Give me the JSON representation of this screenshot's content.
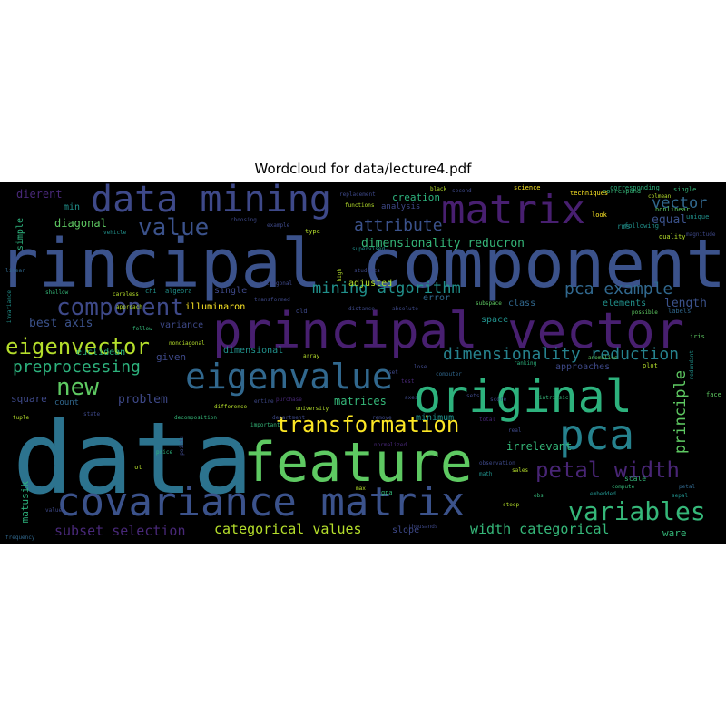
{
  "figure": {
    "title": "Wordcloud for data/lecture4.pdf"
  },
  "colors": {
    "background": "#000000",
    "title": "#000000"
  },
  "words": [
    {
      "text": "data",
      "color": "#2c738e"
    },
    {
      "text": "principal component",
      "color": "#3b528b"
    },
    {
      "text": "principal vector",
      "color": "#481f70"
    },
    {
      "text": "feature",
      "color": "#5ec962"
    },
    {
      "text": "covariance matrix",
      "color": "#3b528b"
    },
    {
      "text": "original",
      "color": "#2db27d"
    },
    {
      "text": "data mining",
      "color": "#3e4989"
    },
    {
      "text": "matrix",
      "color": "#481f70"
    },
    {
      "text": "eigenvalue",
      "color": "#31688e"
    },
    {
      "text": "pca",
      "color": "#26828e"
    },
    {
      "text": "transformation",
      "color": "#fde725"
    },
    {
      "text": "variables",
      "color": "#35b779"
    },
    {
      "text": "petal width",
      "color": "#482575"
    },
    {
      "text": "component",
      "color": "#3e4989"
    },
    {
      "text": "eigenvector",
      "color": "#b5de2b"
    },
    {
      "text": "value",
      "color": "#3b528b"
    },
    {
      "text": "new",
      "color": "#5ec962"
    },
    {
      "text": "dimensionality reduction",
      "color": "#26828e"
    },
    {
      "text": "mining algorithm",
      "color": "#21918c"
    },
    {
      "text": "pca example",
      "color": "#31688e"
    },
    {
      "text": "preprocessing",
      "color": "#2db27d"
    },
    {
      "text": "attribute",
      "color": "#3b528b"
    },
    {
      "text": "vector",
      "color": "#31688e"
    },
    {
      "text": "principle",
      "color": "#5ec962"
    },
    {
      "text": "categorical values",
      "color": "#b5de2b"
    },
    {
      "text": "subset selection",
      "color": "#482878"
    },
    {
      "text": "width categorical",
      "color": "#35b779"
    },
    {
      "text": "dimensionality reducron",
      "color": "#35b779"
    },
    {
      "text": "equal",
      "color": "#3b528b"
    },
    {
      "text": "best axis",
      "color": "#3b528b"
    },
    {
      "text": "length",
      "color": "#3b528b"
    },
    {
      "text": "problem",
      "color": "#3e4989"
    },
    {
      "text": "matrices",
      "color": "#35b779"
    },
    {
      "text": "irrelevant",
      "color": "#35b779"
    },
    {
      "text": "diagonal",
      "color": "#5ec962"
    },
    {
      "text": "dierent",
      "color": "#482878"
    },
    {
      "text": "square",
      "color": "#3e4989"
    },
    {
      "text": "given",
      "color": "#3e4989"
    },
    {
      "text": "creation",
      "color": "#2db27d"
    },
    {
      "text": "adjusted",
      "color": "#b5de2b"
    },
    {
      "text": "minimum",
      "color": "#21918c"
    },
    {
      "text": "slope",
      "color": "#3e4989"
    },
    {
      "text": "matusik",
      "color": "#2db27d"
    },
    {
      "text": "illuminaron",
      "color": "#fde725"
    },
    {
      "text": "single",
      "color": "#3e4989"
    },
    {
      "text": "error",
      "color": "#31688e"
    },
    {
      "text": "variance",
      "color": "#3e4989"
    },
    {
      "text": "elements",
      "color": "#21918c"
    },
    {
      "text": "approaches",
      "color": "#3e4989"
    },
    {
      "text": "class",
      "color": "#31688e"
    },
    {
      "text": "space",
      "color": "#21918c"
    },
    {
      "text": "dimensional",
      "color": "#21918c"
    },
    {
      "text": "min",
      "color": "#21918c"
    },
    {
      "text": "simple",
      "color": "#2db27d"
    },
    {
      "text": "euclidean",
      "color": "#2db27d"
    },
    {
      "text": "count",
      "color": "#31688e"
    },
    {
      "text": "analysis",
      "color": "#3e4989"
    },
    {
      "text": "ware",
      "color": "#35b779"
    },
    {
      "text": "scale",
      "color": "#35b779"
    },
    {
      "text": "nonlinear",
      "color": "#5ec962"
    },
    {
      "text": "unique",
      "color": "#21918c"
    },
    {
      "text": "quality",
      "color": "#b5de2b"
    },
    {
      "text": "correspond",
      "color": "#35b779"
    },
    {
      "text": "science",
      "color": "#fde725"
    },
    {
      "text": "students",
      "color": "#3e4989"
    },
    {
      "text": "linear",
      "color": "#31688e"
    },
    {
      "text": "shallow",
      "color": "#35b779"
    },
    {
      "text": "careless",
      "color": "#b5de2b"
    },
    {
      "text": "chi",
      "color": "#21918c"
    },
    {
      "text": "algebra",
      "color": "#21918c"
    },
    {
      "text": "orthogonal",
      "color": "#3e4989"
    },
    {
      "text": "transformed",
      "color": "#3e4989"
    },
    {
      "text": "distance",
      "color": "#3e4989"
    },
    {
      "text": "absolute",
      "color": "#3e4989"
    },
    {
      "text": "subspace",
      "color": "#5ec962"
    },
    {
      "text": "university",
      "color": "#b5de2b"
    },
    {
      "text": "important",
      "color": "#35b779"
    },
    {
      "text": "department",
      "color": "#3e4989"
    },
    {
      "text": "difference",
      "color": "#b5de2b"
    },
    {
      "text": "decomposition",
      "color": "#35b779"
    },
    {
      "text": "computer",
      "color": "#31688e"
    },
    {
      "text": "purchase",
      "color": "#482878"
    },
    {
      "text": "entire",
      "color": "#3e4989"
    },
    {
      "text": "array",
      "color": "#b5de2b"
    },
    {
      "text": "tuple",
      "color": "#b5de2b"
    },
    {
      "text": "price",
      "color": "#2db27d"
    },
    {
      "text": "points",
      "color": "#3e4989"
    },
    {
      "text": "normalized",
      "color": "#482878"
    },
    {
      "text": "remove",
      "color": "#3e4989"
    },
    {
      "text": "total",
      "color": "#482878"
    },
    {
      "text": "math",
      "color": "#21918c"
    },
    {
      "text": "sales",
      "color": "#b5de2b"
    },
    {
      "text": "compute",
      "color": "#35b779"
    },
    {
      "text": "petal",
      "color": "#31688e"
    },
    {
      "text": "embedded",
      "color": "#21918c"
    },
    {
      "text": "sepal",
      "color": "#21918c"
    },
    {
      "text": "thousands",
      "color": "#3e4989"
    },
    {
      "text": "frequency",
      "color": "#31688e"
    },
    {
      "text": "values",
      "color": "#3e4989"
    },
    {
      "text": "techniques",
      "color": "#fde725"
    },
    {
      "text": "corresponding",
      "color": "#2db27d"
    },
    {
      "text": "following",
      "color": "#21918c"
    },
    {
      "text": "replacement",
      "color": "#3e4989"
    },
    {
      "text": "functions",
      "color": "#b5de2b"
    },
    {
      "text": "approach",
      "color": "#b5de2b"
    },
    {
      "text": "vehicle",
      "color": "#21918c"
    },
    {
      "text": "choosing",
      "color": "#3e4989"
    },
    {
      "text": "example",
      "color": "#3e4989"
    },
    {
      "text": "type",
      "color": "#b5de2b"
    },
    {
      "text": "supervised",
      "color": "#21918c"
    },
    {
      "text": "nondiagonal",
      "color": "#b5de2b"
    },
    {
      "text": "magnitude",
      "color": "#3e4989"
    },
    {
      "text": "black",
      "color": "#b5de2b"
    },
    {
      "text": "second",
      "color": "#3e4989"
    },
    {
      "text": "single",
      "color": "#35b779"
    },
    {
      "text": "look",
      "color": "#fde725"
    },
    {
      "text": "ranking",
      "color": "#2db27d"
    },
    {
      "text": "possible",
      "color": "#5ec962"
    },
    {
      "text": "plot",
      "color": "#b5de2b"
    },
    {
      "text": "labels",
      "color": "#31688e"
    },
    {
      "text": "real",
      "color": "#3e4989"
    },
    {
      "text": "observation",
      "color": "#3e4989"
    },
    {
      "text": "steep",
      "color": "#b5de2b"
    },
    {
      "text": "face",
      "color": "#5ec962"
    },
    {
      "text": "redundant",
      "color": "#21918c"
    },
    {
      "text": "iris",
      "color": "#5ec962"
    },
    {
      "text": "score",
      "color": "#3e4989"
    },
    {
      "text": "rot",
      "color": "#b5de2b"
    },
    {
      "text": "max",
      "color": "#b5de2b"
    },
    {
      "text": "gpa",
      "color": "#35b779"
    },
    {
      "text": "anomalies",
      "color": "#5ec962"
    },
    {
      "text": "high",
      "color": "#b5de2b"
    },
    {
      "text": "old",
      "color": "#3e4989"
    },
    {
      "text": "set",
      "color": "#3e4989"
    },
    {
      "text": "test",
      "color": "#482878"
    },
    {
      "text": "axes",
      "color": "#3e4989"
    },
    {
      "text": "lose",
      "color": "#3e4989"
    },
    {
      "text": "sets",
      "color": "#3e4989"
    },
    {
      "text": "rms",
      "color": "#21918c"
    },
    {
      "text": "follow",
      "color": "#35b779"
    },
    {
      "text": "state",
      "color": "#3e4989"
    },
    {
      "text": "colmean",
      "color": "#b5de2b"
    },
    {
      "text": "intrinsic",
      "color": "#35b779"
    },
    {
      "text": "invariance",
      "color": "#21918c"
    },
    {
      "text": "obs",
      "color": "#35b779"
    }
  ]
}
